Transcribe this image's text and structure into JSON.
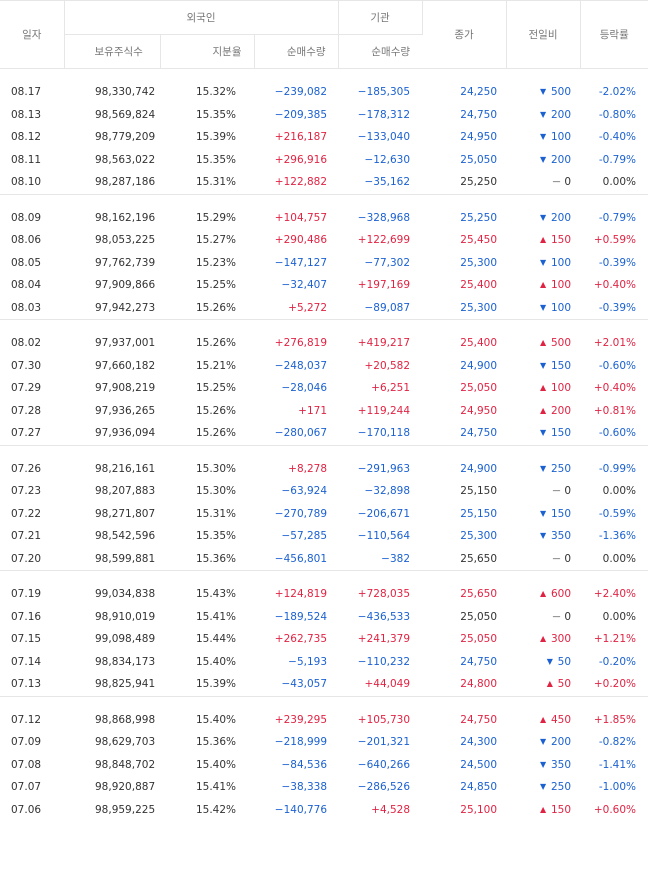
{
  "headers": {
    "date": "일자",
    "foreign": "외국인",
    "institution": "기관",
    "holdings": "보유주식수",
    "ratio": "지분율",
    "foreign_net": "순매수량",
    "inst_net": "순매수량",
    "close": "종가",
    "change": "전일비",
    "rate": "등락률"
  },
  "groups": [
    [
      {
        "date": "08.17",
        "holdings": "98,330,742",
        "ratio": "15.32%",
        "foreign_net": "−239,082",
        "inst_net": "−185,305",
        "close": "24,250",
        "dir": "down",
        "change": "500",
        "rate": "-2.02%"
      },
      {
        "date": "08.13",
        "holdings": "98,569,824",
        "ratio": "15.35%",
        "foreign_net": "−209,385",
        "inst_net": "−178,312",
        "close": "24,750",
        "dir": "down",
        "change": "200",
        "rate": "-0.80%"
      },
      {
        "date": "08.12",
        "holdings": "98,779,209",
        "ratio": "15.39%",
        "foreign_net": "+216,187",
        "inst_net": "−133,040",
        "close": "24,950",
        "dir": "down",
        "change": "100",
        "rate": "-0.40%"
      },
      {
        "date": "08.11",
        "holdings": "98,563,022",
        "ratio": "15.35%",
        "foreign_net": "+296,916",
        "inst_net": "−12,630",
        "close": "25,050",
        "dir": "down",
        "change": "200",
        "rate": "-0.79%"
      },
      {
        "date": "08.10",
        "holdings": "98,287,186",
        "ratio": "15.31%",
        "foreign_net": "+122,882",
        "inst_net": "−35,162",
        "close": "25,250",
        "dir": "flat",
        "change": "0",
        "rate": "0.00%"
      }
    ],
    [
      {
        "date": "08.09",
        "holdings": "98,162,196",
        "ratio": "15.29%",
        "foreign_net": "+104,757",
        "inst_net": "−328,968",
        "close": "25,250",
        "dir": "down",
        "change": "200",
        "rate": "-0.79%"
      },
      {
        "date": "08.06",
        "holdings": "98,053,225",
        "ratio": "15.27%",
        "foreign_net": "+290,486",
        "inst_net": "+122,699",
        "close": "25,450",
        "dir": "up",
        "change": "150",
        "rate": "+0.59%"
      },
      {
        "date": "08.05",
        "holdings": "97,762,739",
        "ratio": "15.23%",
        "foreign_net": "−147,127",
        "inst_net": "−77,302",
        "close": "25,300",
        "dir": "down",
        "change": "100",
        "rate": "-0.39%"
      },
      {
        "date": "08.04",
        "holdings": "97,909,866",
        "ratio": "15.25%",
        "foreign_net": "−32,407",
        "inst_net": "+197,169",
        "close": "25,400",
        "dir": "up",
        "change": "100",
        "rate": "+0.40%"
      },
      {
        "date": "08.03",
        "holdings": "97,942,273",
        "ratio": "15.26%",
        "foreign_net": "+5,272",
        "inst_net": "−89,087",
        "close": "25,300",
        "dir": "down",
        "change": "100",
        "rate": "-0.39%"
      }
    ],
    [
      {
        "date": "08.02",
        "holdings": "97,937,001",
        "ratio": "15.26%",
        "foreign_net": "+276,819",
        "inst_net": "+419,217",
        "close": "25,400",
        "dir": "up",
        "change": "500",
        "rate": "+2.01%"
      },
      {
        "date": "07.30",
        "holdings": "97,660,182",
        "ratio": "15.21%",
        "foreign_net": "−248,037",
        "inst_net": "+20,582",
        "close": "24,900",
        "dir": "down",
        "change": "150",
        "rate": "-0.60%"
      },
      {
        "date": "07.29",
        "holdings": "97,908,219",
        "ratio": "15.25%",
        "foreign_net": "−28,046",
        "inst_net": "+6,251",
        "close": "25,050",
        "dir": "up",
        "change": "100",
        "rate": "+0.40%"
      },
      {
        "date": "07.28",
        "holdings": "97,936,265",
        "ratio": "15.26%",
        "foreign_net": "+171",
        "inst_net": "+119,244",
        "close": "24,950",
        "dir": "up",
        "change": "200",
        "rate": "+0.81%"
      },
      {
        "date": "07.27",
        "holdings": "97,936,094",
        "ratio": "15.26%",
        "foreign_net": "−280,067",
        "inst_net": "−170,118",
        "close": "24,750",
        "dir": "down",
        "change": "150",
        "rate": "-0.60%"
      }
    ],
    [
      {
        "date": "07.26",
        "holdings": "98,216,161",
        "ratio": "15.30%",
        "foreign_net": "+8,278",
        "inst_net": "−291,963",
        "close": "24,900",
        "dir": "down",
        "change": "250",
        "rate": "-0.99%"
      },
      {
        "date": "07.23",
        "holdings": "98,207,883",
        "ratio": "15.30%",
        "foreign_net": "−63,924",
        "inst_net": "−32,898",
        "close": "25,150",
        "dir": "flat",
        "change": "0",
        "rate": "0.00%"
      },
      {
        "date": "07.22",
        "holdings": "98,271,807",
        "ratio": "15.31%",
        "foreign_net": "−270,789",
        "inst_net": "−206,671",
        "close": "25,150",
        "dir": "down",
        "change": "150",
        "rate": "-0.59%"
      },
      {
        "date": "07.21",
        "holdings": "98,542,596",
        "ratio": "15.35%",
        "foreign_net": "−57,285",
        "inst_net": "−110,564",
        "close": "25,300",
        "dir": "down",
        "change": "350",
        "rate": "-1.36%"
      },
      {
        "date": "07.20",
        "holdings": "98,599,881",
        "ratio": "15.36%",
        "foreign_net": "−456,801",
        "inst_net": "−382",
        "close": "25,650",
        "dir": "flat",
        "change": "0",
        "rate": "0.00%"
      }
    ],
    [
      {
        "date": "07.19",
        "holdings": "99,034,838",
        "ratio": "15.43%",
        "foreign_net": "+124,819",
        "inst_net": "+728,035",
        "close": "25,650",
        "dir": "up",
        "change": "600",
        "rate": "+2.40%"
      },
      {
        "date": "07.16",
        "holdings": "98,910,019",
        "ratio": "15.41%",
        "foreign_net": "−189,524",
        "inst_net": "−436,533",
        "close": "25,050",
        "dir": "flat",
        "change": "0",
        "rate": "0.00%"
      },
      {
        "date": "07.15",
        "holdings": "99,098,489",
        "ratio": "15.44%",
        "foreign_net": "+262,735",
        "inst_net": "+241,379",
        "close": "25,050",
        "dir": "up",
        "change": "300",
        "rate": "+1.21%"
      },
      {
        "date": "07.14",
        "holdings": "98,834,173",
        "ratio": "15.40%",
        "foreign_net": "−5,193",
        "inst_net": "−110,232",
        "close": "24,750",
        "dir": "down",
        "change": "50",
        "rate": "-0.20%"
      },
      {
        "date": "07.13",
        "holdings": "98,825,941",
        "ratio": "15.39%",
        "foreign_net": "−43,057",
        "inst_net": "+44,049",
        "close": "24,800",
        "dir": "up",
        "change": "50",
        "rate": "+0.20%"
      }
    ],
    [
      {
        "date": "07.12",
        "holdings": "98,868,998",
        "ratio": "15.40%",
        "foreign_net": "+239,295",
        "inst_net": "+105,730",
        "close": "24,750",
        "dir": "up",
        "change": "450",
        "rate": "+1.85%"
      },
      {
        "date": "07.09",
        "holdings": "98,629,703",
        "ratio": "15.36%",
        "foreign_net": "−218,999",
        "inst_net": "−201,321",
        "close": "24,300",
        "dir": "down",
        "change": "200",
        "rate": "-0.82%"
      },
      {
        "date": "07.08",
        "holdings": "98,848,702",
        "ratio": "15.40%",
        "foreign_net": "−84,536",
        "inst_net": "−640,266",
        "close": "24,500",
        "dir": "down",
        "change": "350",
        "rate": "-1.41%"
      },
      {
        "date": "07.07",
        "holdings": "98,920,887",
        "ratio": "15.41%",
        "foreign_net": "−38,338",
        "inst_net": "−286,526",
        "close": "24,850",
        "dir": "down",
        "change": "250",
        "rate": "-1.00%"
      },
      {
        "date": "07.06",
        "holdings": "98,959,225",
        "ratio": "15.42%",
        "foreign_net": "−140,776",
        "inst_net": "+4,528",
        "close": "25,100",
        "dir": "up",
        "change": "150",
        "rate": "+0.60%"
      }
    ]
  ],
  "colors": {
    "up": "#e12343",
    "down": "#1b61d1",
    "text": "#333333",
    "header_text": "#777777",
    "border": "#e6e6e6"
  },
  "icons": {
    "up": "triangle-up-icon",
    "down": "triangle-down-icon",
    "flat": "dash-icon"
  }
}
